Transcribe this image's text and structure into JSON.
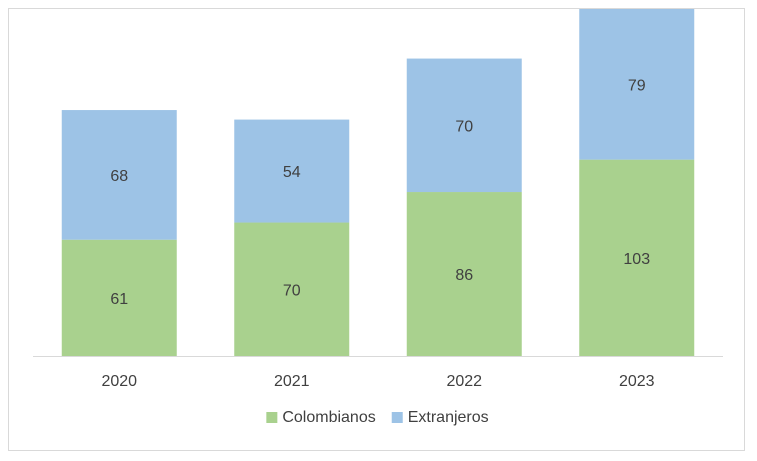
{
  "chart_data": {
    "type": "bar",
    "stacked": true,
    "categories": [
      "2020",
      "2021",
      "2022",
      "2023"
    ],
    "series": [
      {
        "name": "Colombianos",
        "values": [
          61,
          70,
          86,
          103
        ],
        "color": "#a9d18e"
      },
      {
        "name": "Extranjeros",
        "values": [
          68,
          54,
          70,
          79
        ],
        "color": "#9dc3e6"
      }
    ],
    "ylim": [
      0,
      182
    ],
    "grid": false,
    "legend_position": "bottom",
    "axis_color": "#d9d9d9",
    "label_color": "#404040"
  }
}
